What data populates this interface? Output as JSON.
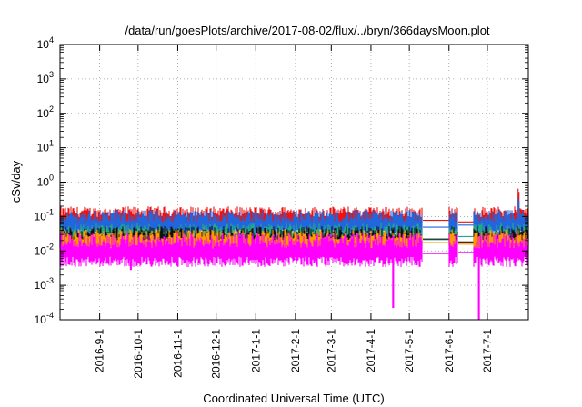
{
  "chart_data": {
    "type": "line",
    "title": "/data/run/goesPlots/archive/2017-08-02/flux/../bryn/366daysMoon.plot",
    "xlabel": "Coordinated Universal Time (UTC)",
    "ylabel": "cSv/day",
    "yscale": "log",
    "ylim": [
      0.0001,
      10000
    ],
    "xlim": [
      "2016-08-01",
      "2017-08-02"
    ],
    "y_ticks": [
      {
        "base": "10",
        "exp": "4"
      },
      {
        "base": "10",
        "exp": "3"
      },
      {
        "base": "10",
        "exp": "2"
      },
      {
        "base": "10",
        "exp": "1"
      },
      {
        "base": "10",
        "exp": "0"
      },
      {
        "base": "10",
        "exp": "-1"
      },
      {
        "base": "10",
        "exp": "-2"
      },
      {
        "base": "10",
        "exp": "-3"
      },
      {
        "base": "10",
        "exp": "-4"
      }
    ],
    "x_ticks": [
      "2016-9-1",
      "2016-10-1",
      "2016-11-1",
      "2016-12-1",
      "2017-1-1",
      "2017-2-1",
      "2017-3-1",
      "2017-4-1",
      "2017-5-1",
      "2017-6-1",
      "2017-7-1"
    ],
    "grid": true,
    "legend": "none",
    "data_gaps": [
      [
        "2017-05-11",
        "2017-06-01"
      ],
      [
        "2017-06-08",
        "2017-06-20"
      ]
    ],
    "series": [
      {
        "color": "#ee1111",
        "level": 0.075,
        "spread": 0.35,
        "spikes": [
          [
            "2017-07-25",
            0.65
          ]
        ]
      },
      {
        "color": "#2266dd",
        "level": 0.052,
        "spread": 0.4,
        "spikes": [
          [
            "2017-07-25",
            0.35
          ]
        ]
      },
      {
        "color": "#22aa88",
        "level": 0.024,
        "spread": 0.35,
        "spikes": []
      },
      {
        "color": "#111111",
        "level": 0.02,
        "spread": 0.35,
        "spikes": []
      },
      {
        "color": "#ff9900",
        "level": 0.016,
        "spread": 0.35,
        "spikes": []
      },
      {
        "color": "#ff00ff",
        "level": 0.0085,
        "spread": 0.5,
        "spikes": [
          [
            "2016-09-25",
            0.0028
          ],
          [
            "2017-04-18",
            0.00022
          ],
          [
            "2017-06-24",
            0.0001
          ]
        ]
      }
    ]
  }
}
